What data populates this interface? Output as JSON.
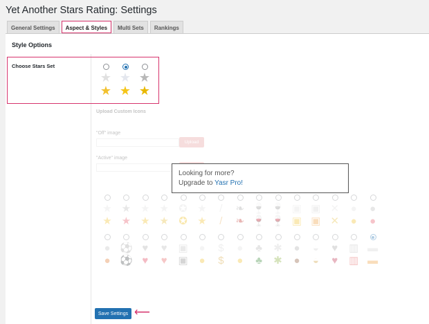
{
  "title": "Yet Another Stars Rating: Settings",
  "tabs": [
    {
      "label": "General Settings"
    },
    {
      "label": "Aspect & Styles",
      "active": true
    },
    {
      "label": "Multi Sets"
    },
    {
      "label": "Rankings"
    }
  ],
  "section_title": "Style Options",
  "choose_stars": {
    "label": "Choose Stars Set",
    "selected_index": 1,
    "sets": [
      {
        "off": "#e0e0e0",
        "on": "#f2c12e"
      },
      {
        "off": "#e4e7ee",
        "on": "#f5c518"
      },
      {
        "off": "#b8b8b8",
        "on": "#e8b800"
      }
    ]
  },
  "upload": {
    "heading": "Upload Custom Icons",
    "off_label": "\"Off\" image",
    "active_label": "\"Active\" image",
    "upload_button": "Upload"
  },
  "promo": {
    "line1": "Looking for more?",
    "line2_prefix": "Upgrade to ",
    "link": "Yasr Pro!"
  },
  "pro_icons": {
    "row1": [
      {
        "g": "★",
        "c": "#f2c12e"
      },
      {
        "g": "★",
        "c": "#e85a6a"
      },
      {
        "g": "★",
        "c": "#f2c12e"
      },
      {
        "g": "★",
        "c": "#e8c040"
      },
      {
        "g": "✪",
        "c": "#f0c020"
      },
      {
        "g": "★",
        "c": "#f2c12e"
      },
      {
        "g": "/",
        "c": "#e8b060"
      },
      {
        "g": "❧",
        "c": "#c0302a"
      },
      {
        "g": "🍷",
        "c": "#8b1a2a"
      },
      {
        "g": "🍷",
        "c": "#c0303a"
      },
      {
        "g": "▣",
        "c": "#f2c12e"
      },
      {
        "g": "▣",
        "c": "#f0a040"
      },
      {
        "g": "✕",
        "c": "#e8c040"
      },
      {
        "g": "●",
        "c": "#f2c12e"
      },
      {
        "g": "●",
        "c": "#e85a6a"
      }
    ],
    "row2": [
      {
        "g": "●",
        "c": "#e07a30"
      },
      {
        "g": "⚽",
        "c": "#333"
      },
      {
        "g": "♥",
        "c": "#e0405a"
      },
      {
        "g": "♥",
        "c": "#e86060"
      },
      {
        "g": "▣",
        "c": "#888"
      },
      {
        "g": "●",
        "c": "#f2c12e"
      },
      {
        "g": "$",
        "c": "#d4a030"
      },
      {
        "g": "●",
        "c": "#f2c12e"
      },
      {
        "g": "♣",
        "c": "#3a8a3a"
      },
      {
        "g": "✱",
        "c": "#8ab040"
      },
      {
        "g": "●",
        "c": "#8b5a3a"
      },
      {
        "g": "◒",
        "c": "#d0a040"
      },
      {
        "g": "♥",
        "c": "#c03050"
      },
      {
        "g": "▥",
        "c": "#e05050"
      },
      {
        "g": "▬",
        "c": "#f0a040"
      }
    ],
    "selected": "row2-14"
  },
  "save_button": "Save Settings",
  "arrow": "⟵"
}
